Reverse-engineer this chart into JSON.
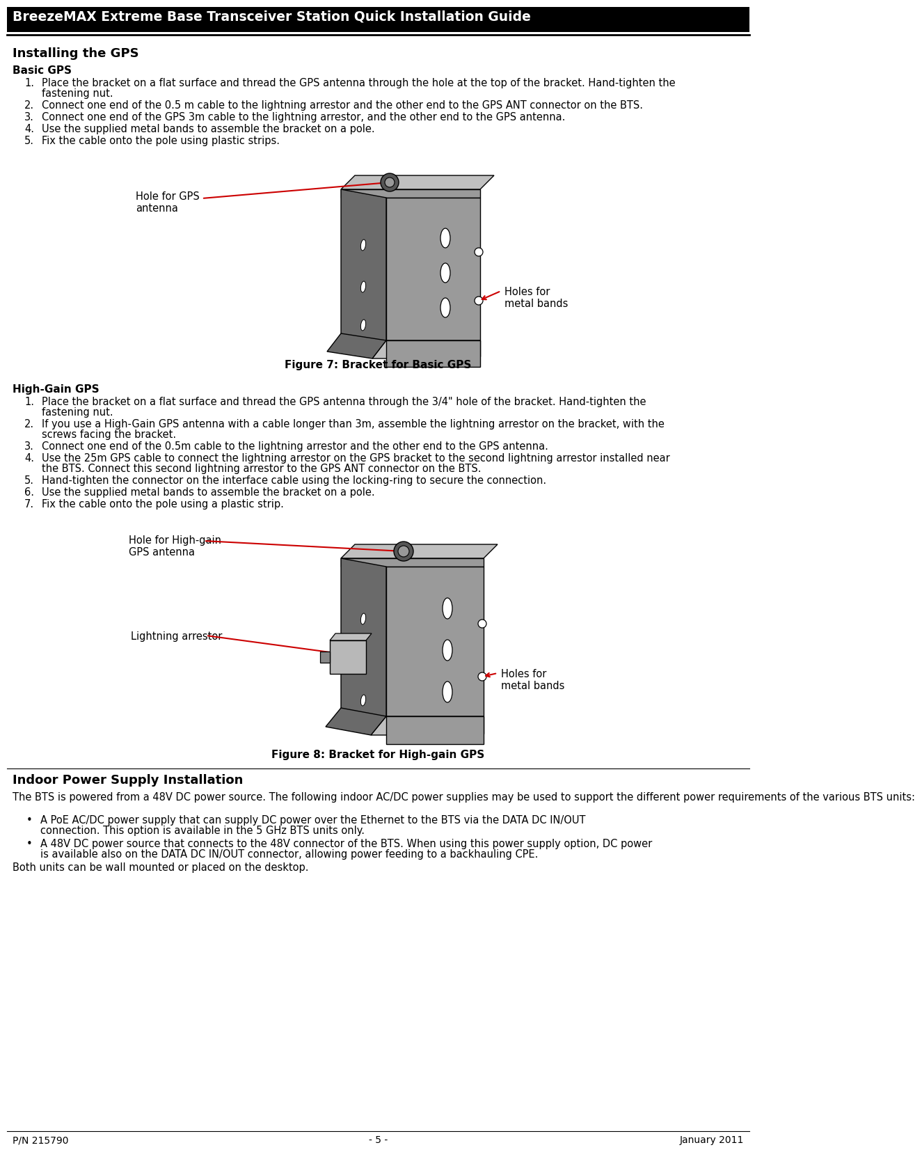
{
  "title": "BreezeMAX Extreme Base Transceiver Station Quick Installation Guide",
  "bg_color": "#ffffff",
  "text_color": "#000000",
  "section1_heading": "Installing the GPS",
  "section1_subheading": "Basic GPS",
  "fig7_caption": "Figure 7: Bracket for Basic GPS",
  "fig7_label1": "Hole for GPS\nantenna",
  "fig7_label2": "Holes for\nmetal bands",
  "section2_subheading": "High-Gain GPS",
  "fig8_caption": "Figure 8: Bracket for High-gain GPS",
  "fig8_label1": "Hole for High-gain\nGPS antenna",
  "fig8_label2": "Lightning arrestor",
  "fig8_label3": "Holes for\nmetal bands",
  "section3_heading": "Indoor Power Supply Installation",
  "section3_body": "The BTS is powered from a 48V DC power source. The following indoor AC/DC power supplies may be used to support the different power requirements of the various BTS units:",
  "bullet1_line1": "A PoE AC/DC power supply that can supply DC power over the Ethernet to the BTS via the DATA DC IN/OUT",
  "bullet1_line2": "connection. This option is available in the 5 GHz BTS units only.",
  "bullet2_line1": "A 48V DC power source that connects to the 48V connector of the BTS. When using this power supply option, DC power",
  "bullet2_line2": "is available also on the DATA DC IN/OUT connector, allowing power feeding to a backhauling CPE.",
  "section3_footer": "Both units can be wall mounted or placed on the desktop.",
  "footer_left": "P/N 215790",
  "footer_center": "- 5 -",
  "footer_right": "January 2011",
  "arrow_color": "#cc0000",
  "face_color": "#9a9a9a",
  "dark_color": "#6a6a6a",
  "light_color": "#c0c0c0"
}
